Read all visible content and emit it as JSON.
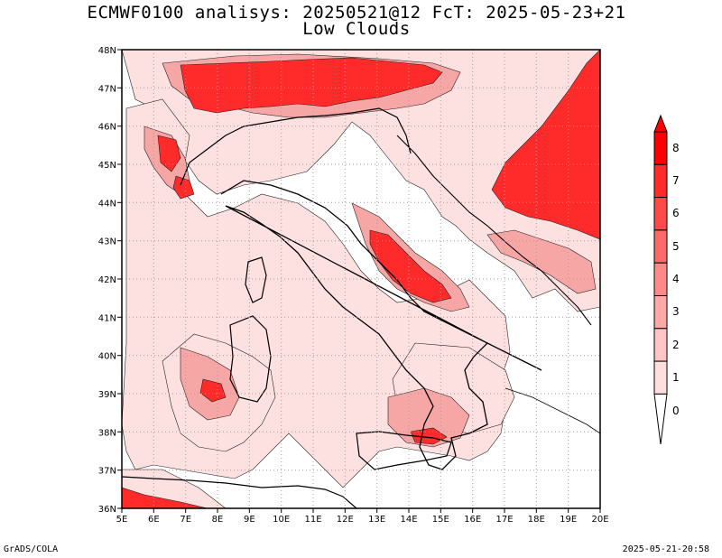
{
  "title_line1": "ECMWF0100 analisys: 20250521@12 FcT: 2025-05-23+21",
  "title_line2": "Low Clouds",
  "footer_left": "GrADS/COLA",
  "footer_right": "2025-05-21-20:58",
  "map": {
    "lon_labels": [
      "5E",
      "6E",
      "7E",
      "8E",
      "9E",
      "10E",
      "11E",
      "12E",
      "13E",
      "14E",
      "15E",
      "16E",
      "17E",
      "18E",
      "19E",
      "20E"
    ],
    "lat_labels": [
      "48N",
      "47N",
      "46N",
      "45N",
      "44N",
      "43N",
      "42N",
      "41N",
      "40N",
      "39N",
      "38N",
      "37N",
      "36N"
    ],
    "lon_range": [
      5,
      20
    ],
    "lat_range": [
      36,
      48
    ]
  },
  "colorbar": {
    "labels": [
      "8",
      "7",
      "6",
      "5",
      "4",
      "3",
      "2",
      "1",
      "0"
    ],
    "colors": [
      "#ff0000",
      "#ff2a2a",
      "#ff4a4a",
      "#ff6a6a",
      "#ff8a8a",
      "#ffa8a8",
      "#ffc4c4",
      "#ffdede",
      "#ffffff"
    ]
  },
  "colors": {
    "level_low": "#fde0e0",
    "level_mid": "#f7a6a6",
    "level_high": "#ff2a2a",
    "grid": "#a0a0a0"
  }
}
